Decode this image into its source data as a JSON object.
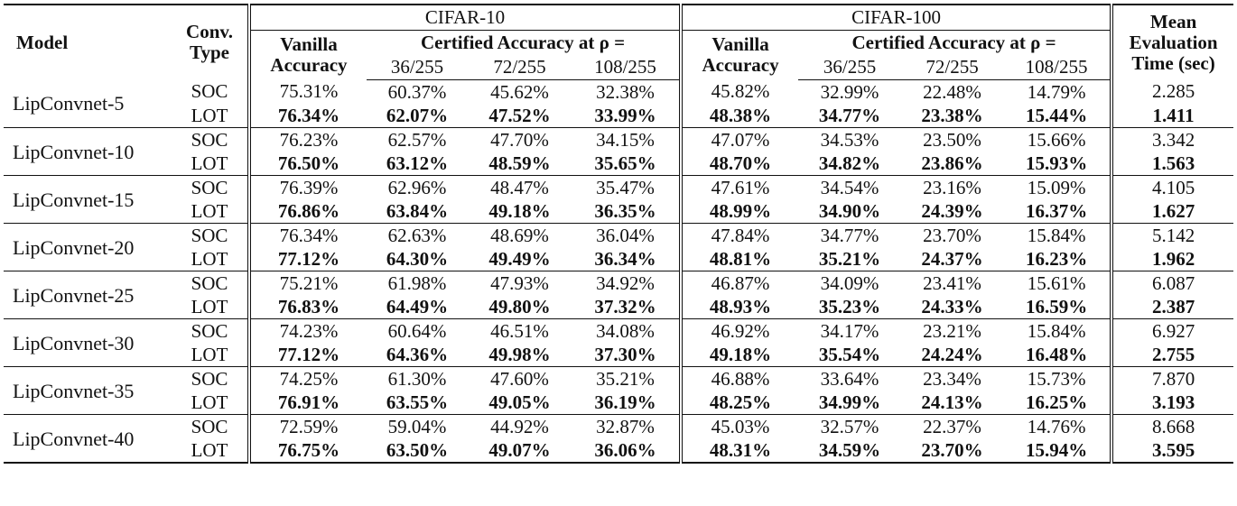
{
  "table": {
    "headers": {
      "model": "Model",
      "conv_type": [
        "Conv.",
        "Type"
      ],
      "cifar10": "CIFAR-10",
      "cifar100": "CIFAR-100",
      "mean_eval": [
        "Mean",
        "Evaluation",
        "Time (sec)"
      ],
      "vanilla": [
        "Vanilla",
        "Accuracy"
      ],
      "certified": "Certified Accuracy at ρ =",
      "rhos": [
        "36/255",
        "72/255",
        "108/255"
      ]
    },
    "rows": [
      {
        "model": "LipConvnet-5",
        "soc": {
          "type": "SOC",
          "values": [
            "75.31%",
            "60.37%",
            "45.62%",
            "32.38%",
            "45.82%",
            "32.99%",
            "22.48%",
            "14.79%",
            "2.285"
          ]
        },
        "lot": {
          "type": "LOT",
          "values": [
            "76.34%",
            "62.07%",
            "47.52%",
            "33.99%",
            "48.38%",
            "34.77%",
            "23.38%",
            "15.44%",
            "1.411"
          ]
        }
      },
      {
        "model": "LipConvnet-10",
        "soc": {
          "type": "SOC",
          "values": [
            "76.23%",
            "62.57%",
            "47.70%",
            "34.15%",
            "47.07%",
            "34.53%",
            "23.50%",
            "15.66%",
            "3.342"
          ]
        },
        "lot": {
          "type": "LOT",
          "values": [
            "76.50%",
            "63.12%",
            "48.59%",
            "35.65%",
            "48.70%",
            "34.82%",
            "23.86%",
            "15.93%",
            "1.563"
          ]
        }
      },
      {
        "model": "LipConvnet-15",
        "soc": {
          "type": "SOC",
          "values": [
            "76.39%",
            "62.96%",
            "48.47%",
            "35.47%",
            "47.61%",
            "34.54%",
            "23.16%",
            "15.09%",
            "4.105"
          ]
        },
        "lot": {
          "type": "LOT",
          "values": [
            "76.86%",
            "63.84%",
            "49.18%",
            "36.35%",
            "48.99%",
            "34.90%",
            "24.39%",
            "16.37%",
            "1.627"
          ]
        }
      },
      {
        "model": "LipConvnet-20",
        "soc": {
          "type": "SOC",
          "values": [
            "76.34%",
            "62.63%",
            "48.69%",
            "36.04%",
            "47.84%",
            "34.77%",
            "23.70%",
            "15.84%",
            "5.142"
          ]
        },
        "lot": {
          "type": "LOT",
          "values": [
            "77.12%",
            "64.30%",
            "49.49%",
            "36.34%",
            "48.81%",
            "35.21%",
            "24.37%",
            "16.23%",
            "1.962"
          ]
        }
      },
      {
        "model": "LipConvnet-25",
        "soc": {
          "type": "SOC",
          "values": [
            "75.21%",
            "61.98%",
            "47.93%",
            "34.92%",
            "46.87%",
            "34.09%",
            "23.41%",
            "15.61%",
            "6.087"
          ]
        },
        "lot": {
          "type": "LOT",
          "values": [
            "76.83%",
            "64.49%",
            "49.80%",
            "37.32%",
            "48.93%",
            "35.23%",
            "24.33%",
            "16.59%",
            "2.387"
          ]
        }
      },
      {
        "model": "LipConvnet-30",
        "soc": {
          "type": "SOC",
          "values": [
            "74.23%",
            "60.64%",
            "46.51%",
            "34.08%",
            "46.92%",
            "34.17%",
            "23.21%",
            "15.84%",
            "6.927"
          ]
        },
        "lot": {
          "type": "LOT",
          "values": [
            "77.12%",
            "64.36%",
            "49.98%",
            "37.30%",
            "49.18%",
            "35.54%",
            "24.24%",
            "16.48%",
            "2.755"
          ]
        }
      },
      {
        "model": "LipConvnet-35",
        "soc": {
          "type": "SOC",
          "values": [
            "74.25%",
            "61.30%",
            "47.60%",
            "35.21%",
            "46.88%",
            "33.64%",
            "23.34%",
            "15.73%",
            "7.870"
          ]
        },
        "lot": {
          "type": "LOT",
          "values": [
            "76.91%",
            "63.55%",
            "49.05%",
            "36.19%",
            "48.25%",
            "34.99%",
            "24.13%",
            "16.25%",
            "3.193"
          ]
        }
      },
      {
        "model": "LipConvnet-40",
        "soc": {
          "type": "SOC",
          "values": [
            "72.59%",
            "59.04%",
            "44.92%",
            "32.87%",
            "45.03%",
            "32.57%",
            "22.37%",
            "14.76%",
            "8.668"
          ]
        },
        "lot": {
          "type": "LOT",
          "values": [
            "76.75%",
            "63.50%",
            "49.07%",
            "36.06%",
            "48.31%",
            "34.59%",
            "23.70%",
            "15.94%",
            "3.595"
          ]
        }
      }
    ]
  }
}
